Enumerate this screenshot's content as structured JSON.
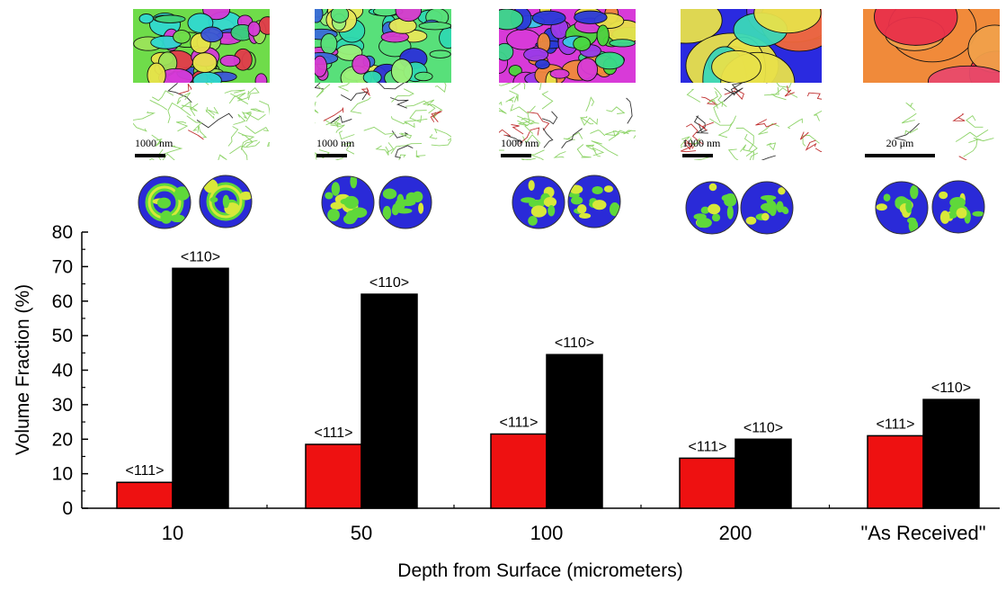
{
  "figure": {
    "columns": [
      {
        "scale_label": "1000 nm",
        "map_colors": [
          "#6fdc4a",
          "#3ccf7c",
          "#9be35a",
          "#d63ad8",
          "#3a55d8",
          "#e8e34a",
          "#2fd8d0",
          "#e23a4a"
        ],
        "pole_style": "ring"
      },
      {
        "scale_label": "1000 nm",
        "map_colors": [
          "#58e07a",
          "#2fd8b0",
          "#9cf07a",
          "#3a6ad8",
          "#d83ad0",
          "#e8e85a",
          "#2b2fd8"
        ],
        "pole_style": "spots"
      },
      {
        "scale_label": "1000 nm",
        "map_colors": [
          "#d83ad8",
          "#2a3ad8",
          "#e8e04a",
          "#3ad88a",
          "#3ac8e8",
          "#f08a3a",
          "#9a3ae8",
          "#4ad83a"
        ],
        "pole_style": "spots"
      },
      {
        "scale_label": "1000 nm",
        "map_colors": [
          "#2a2ae0",
          "#d83ad8",
          "#e8e04a",
          "#3ad8b8",
          "#7a3ae8",
          "#f0683a"
        ],
        "pole_style": "spots"
      },
      {
        "scale_label": "20 μm",
        "map_colors": [
          "#f08a3a",
          "#e8304a",
          "#f0a04a",
          "#e84a6a"
        ],
        "pole_style": "spots"
      }
    ]
  },
  "chart_data": {
    "type": "bar",
    "categories": [
      "10",
      "50",
      "100",
      "200",
      "\"As Received\""
    ],
    "series": [
      {
        "values": [
          7.5,
          18.5,
          21.5,
          14.5,
          21
        ],
        "color": "#ee1111",
        "label": "<111>"
      },
      {
        "values": [
          69.5,
          62,
          44.5,
          20,
          31.5
        ],
        "color": "#000000",
        "label": "<110>"
      }
    ],
    "xlabel": "Depth from Surface (micrometers)",
    "ylabel": "Volume Fraction (%)",
    "ylim": [
      0,
      80
    ],
    "yticks": [
      0,
      10,
      20,
      30,
      40,
      50,
      60,
      70,
      80
    ],
    "legend": "none",
    "grid": false
  }
}
